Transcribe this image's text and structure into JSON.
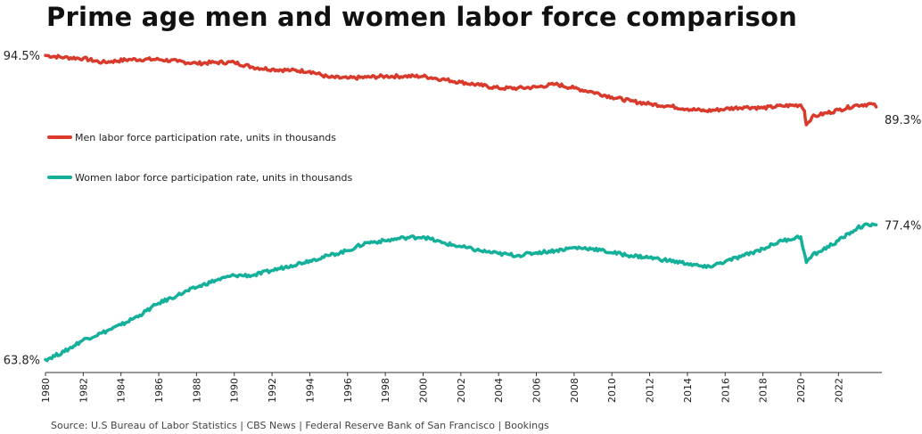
{
  "chart_data": {
    "type": "line",
    "title": "Prime age men and women labor force comparison",
    "source": "Source: U.S Bureau of Labor Statistics | CBS News | Federal Reserve Bank of San Francisco | Bookings",
    "x_ticks": [
      "1980",
      "1982",
      "1984",
      "1986",
      "1988",
      "1990",
      "1992",
      "1994",
      "1996",
      "1998",
      "2000",
      "2002",
      "2004",
      "2006",
      "2008",
      "2010",
      "2012",
      "2014",
      "2016",
      "2018",
      "2020",
      "2022"
    ],
    "xlim": [
      1980,
      2024.3
    ],
    "ylim": [
      62.5,
      96.5
    ],
    "legend_placement": "left",
    "series": [
      {
        "name": "Men labor force participation rate, units in thousands",
        "color": "#d93a2b",
        "start_label": "94.5%",
        "end_label": "89.3%",
        "points": [
          [
            1980.0,
            94.5
          ],
          [
            1981.0,
            94.3
          ],
          [
            1982.0,
            94.2
          ],
          [
            1983.0,
            93.8
          ],
          [
            1983.5,
            93.9
          ],
          [
            1984.5,
            94.1
          ],
          [
            1986.0,
            94.1
          ],
          [
            1987.0,
            93.9
          ],
          [
            1988.0,
            93.7
          ],
          [
            1989.0,
            93.8
          ],
          [
            1990.0,
            93.8
          ],
          [
            1991.0,
            93.3
          ],
          [
            1992.0,
            93.1
          ],
          [
            1993.0,
            93.0
          ],
          [
            1994.0,
            92.9
          ],
          [
            1995.0,
            92.3
          ],
          [
            1996.0,
            92.2
          ],
          [
            1997.0,
            92.3
          ],
          [
            1998.0,
            92.4
          ],
          [
            1999.0,
            92.4
          ],
          [
            2000.0,
            92.4
          ],
          [
            2001.0,
            92.1
          ],
          [
            2002.0,
            91.8
          ],
          [
            2003.0,
            91.5
          ],
          [
            2004.0,
            91.2
          ],
          [
            2005.0,
            91.2
          ],
          [
            2006.0,
            91.3
          ],
          [
            2007.0,
            91.6
          ],
          [
            2008.0,
            91.2
          ],
          [
            2009.0,
            90.8
          ],
          [
            2010.0,
            90.3
          ],
          [
            2011.0,
            89.9
          ],
          [
            2012.0,
            89.6
          ],
          [
            2013.0,
            89.4
          ],
          [
            2014.0,
            89.1
          ],
          [
            2015.0,
            88.9
          ],
          [
            2016.0,
            89.1
          ],
          [
            2017.0,
            89.3
          ],
          [
            2018.0,
            89.2
          ],
          [
            2019.0,
            89.4
          ],
          [
            2020.0,
            89.5
          ],
          [
            2020.2,
            88.9
          ],
          [
            2020.3,
            87.5
          ],
          [
            2020.6,
            88.3
          ],
          [
            2021.0,
            88.5
          ],
          [
            2022.0,
            89.0
          ],
          [
            2023.0,
            89.5
          ],
          [
            2023.8,
            89.6
          ],
          [
            2024.0,
            89.3
          ]
        ]
      },
      {
        "name": "Women labor force participation rate, units in thousands",
        "color": "#15b09a",
        "start_label": "63.8%",
        "end_label": "77.4%",
        "points": [
          [
            1980.0,
            63.8
          ],
          [
            1981.0,
            64.6
          ],
          [
            1982.0,
            65.8
          ],
          [
            1983.0,
            66.5
          ],
          [
            1984.0,
            67.3
          ],
          [
            1985.0,
            68.3
          ],
          [
            1986.0,
            69.5
          ],
          [
            1987.0,
            70.3
          ],
          [
            1988.0,
            71.1
          ],
          [
            1989.0,
            71.8
          ],
          [
            1990.0,
            72.3
          ],
          [
            1991.0,
            72.3
          ],
          [
            1992.0,
            72.8
          ],
          [
            1993.0,
            73.3
          ],
          [
            1994.0,
            73.8
          ],
          [
            1995.0,
            74.3
          ],
          [
            1996.0,
            74.8
          ],
          [
            1997.0,
            75.6
          ],
          [
            1998.0,
            75.8
          ],
          [
            1999.0,
            76.1
          ],
          [
            2000.0,
            76.2
          ],
          [
            2001.0,
            75.6
          ],
          [
            2002.0,
            75.2
          ],
          [
            2003.0,
            74.8
          ],
          [
            2004.0,
            74.5
          ],
          [
            2005.0,
            74.3
          ],
          [
            2006.0,
            74.6
          ],
          [
            2007.0,
            74.8
          ],
          [
            2008.0,
            75.1
          ],
          [
            2009.0,
            75.0
          ],
          [
            2010.0,
            74.6
          ],
          [
            2011.0,
            74.3
          ],
          [
            2012.0,
            74.1
          ],
          [
            2013.0,
            73.8
          ],
          [
            2014.0,
            73.5
          ],
          [
            2015.0,
            73.1
          ],
          [
            2016.0,
            73.7
          ],
          [
            2017.0,
            74.3
          ],
          [
            2018.0,
            75.0
          ],
          [
            2019.0,
            75.8
          ],
          [
            2020.0,
            76.2
          ],
          [
            2020.2,
            74.5
          ],
          [
            2020.3,
            73.6
          ],
          [
            2020.6,
            74.3
          ],
          [
            2021.0,
            74.7
          ],
          [
            2022.0,
            75.8
          ],
          [
            2023.0,
            77.1
          ],
          [
            2023.8,
            77.5
          ],
          [
            2024.0,
            77.4
          ]
        ]
      }
    ]
  }
}
